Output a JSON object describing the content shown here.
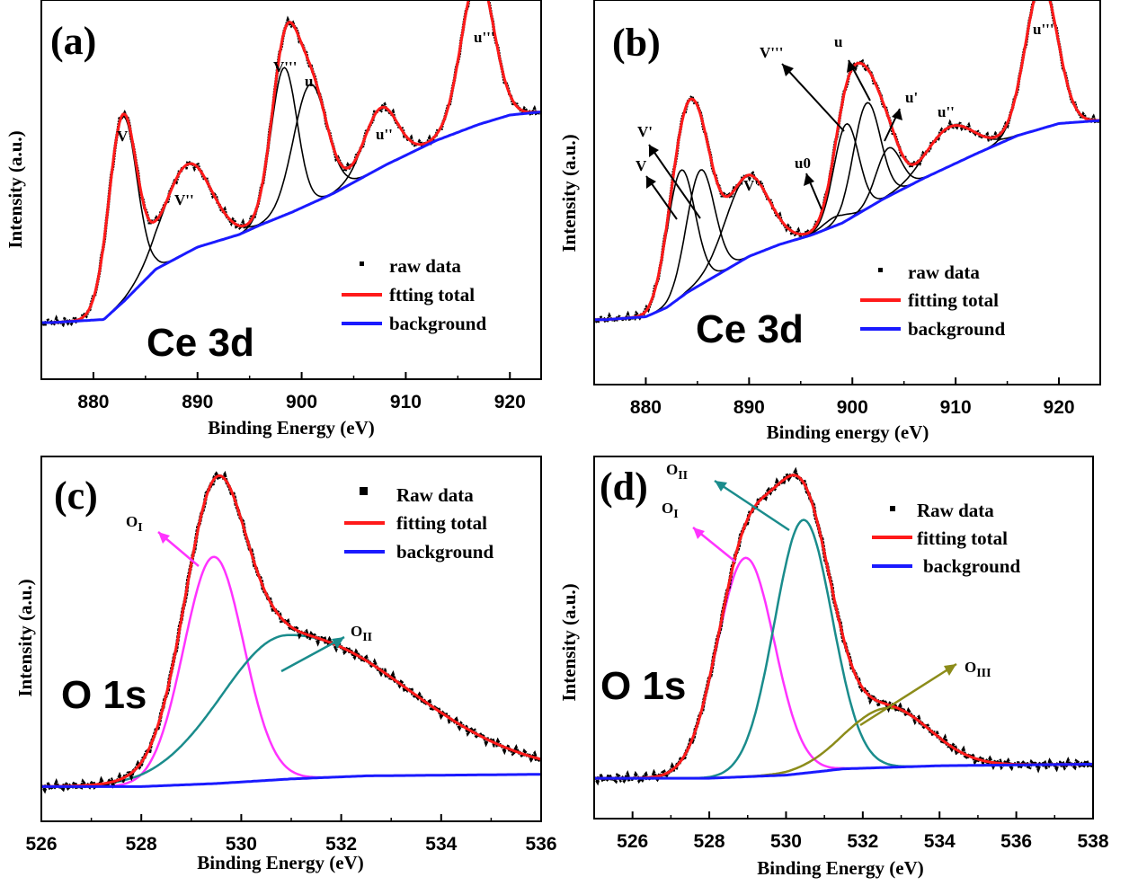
{
  "chart_data": [
    {
      "panel": "(a)",
      "type": "line",
      "title": "Ce 3d",
      "xlabel": "Binding Energy (eV)",
      "ylabel": "Intensity (a.u.)",
      "xlim": [
        875,
        923
      ],
      "xticks": [
        880,
        890,
        900,
        910,
        920
      ],
      "ylim": [
        0,
        100
      ],
      "legend": [
        "raw data",
        "ftting total",
        "background"
      ],
      "background": [
        [
          876,
          6
        ],
        [
          881,
          7
        ],
        [
          883,
          13
        ],
        [
          886,
          23
        ],
        [
          890,
          30
        ],
        [
          894,
          34
        ],
        [
          896,
          37
        ],
        [
          899,
          41
        ],
        [
          903,
          47
        ],
        [
          908,
          56
        ],
        [
          913,
          64
        ],
        [
          917,
          69
        ],
        [
          920,
          72
        ],
        [
          923,
          73
        ]
      ],
      "peaks": [
        {
          "label": "V",
          "center": 882.8,
          "amp": 59,
          "sigma": 1.35
        },
        {
          "label": "V''",
          "center": 889.0,
          "amp": 28,
          "sigma": 2.3
        },
        {
          "label": "V'''",
          "center": 898.3,
          "amp": 47,
          "sigma": 1.25
        },
        {
          "label": "u",
          "center": 900.8,
          "amp": 38,
          "sigma": 1.6
        },
        {
          "label": "u''",
          "center": 907.6,
          "amp": 19,
          "sigma": 1.6
        },
        {
          "label": "u'''",
          "center": 916.9,
          "amp": 48,
          "sigma": 1.55
        }
      ],
      "annotations": [
        "V",
        "V''",
        "V'''",
        "u",
        "u''",
        "u'''"
      ]
    },
    {
      "panel": "(b)",
      "type": "line",
      "title": "Ce 3d",
      "xlabel": "Binding energy (eV)",
      "ylabel": "Intensity (a.u.)",
      "xlim": [
        875,
        924
      ],
      "xticks": [
        880,
        890,
        900,
        910,
        920
      ],
      "ylim": [
        0,
        100
      ],
      "legend": [
        "raw data",
        "fitting total",
        "background"
      ],
      "background": [
        [
          876,
          6
        ],
        [
          880,
          7
        ],
        [
          882,
          10
        ],
        [
          884,
          15
        ],
        [
          887,
          21
        ],
        [
          890,
          27
        ],
        [
          893,
          31
        ],
        [
          896,
          34
        ],
        [
          899,
          38
        ],
        [
          903,
          46
        ],
        [
          907,
          53
        ],
        [
          912,
          61
        ],
        [
          916,
          67
        ],
        [
          920,
          71
        ],
        [
          924,
          72
        ]
      ],
      "peaks": [
        {
          "label": "V",
          "center": 883.4,
          "amp": 42,
          "sigma": 1.35
        },
        {
          "label": "V'",
          "center": 885.3,
          "amp": 38,
          "sigma": 1.35
        },
        {
          "label": "V''",
          "center": 889.8,
          "amp": 27,
          "sigma": 2.1
        },
        {
          "label": "u0",
          "center": 898.4,
          "amp": 3,
          "sigma": 1.2
        },
        {
          "label": "V'''",
          "center": 899.4,
          "amp": 32,
          "sigma": 1.2
        },
        {
          "label": "u",
          "center": 901.4,
          "amp": 35,
          "sigma": 1.3
        },
        {
          "label": "u'",
          "center": 903.5,
          "amp": 16,
          "sigma": 1.2
        },
        {
          "label": "u''",
          "center": 909.4,
          "amp": 13,
          "sigma": 2.3
        },
        {
          "label": "u'''",
          "center": 918.3,
          "amp": 48,
          "sigma": 1.55
        }
      ],
      "annotations": [
        "V",
        "V'",
        "V''",
        "u0",
        "V'''",
        "u",
        "u'",
        "u''",
        "u'''"
      ]
    },
    {
      "panel": "(c)",
      "type": "line",
      "title": "O 1s",
      "xlabel": "Binding Energy (eV)",
      "ylabel": "Intensity (a.u.)",
      "xlim": [
        526,
        536
      ],
      "xticks": [
        526,
        528,
        530,
        532,
        534,
        536
      ],
      "ylim": [
        0,
        100
      ],
      "legend": [
        "Raw data",
        "fitting total",
        "background"
      ],
      "background": [
        [
          526,
          4
        ],
        [
          528,
          4
        ],
        [
          529.5,
          5
        ],
        [
          531,
          6.5
        ],
        [
          532.5,
          7.5
        ],
        [
          536,
          8
        ]
      ],
      "peaks": [
        {
          "label": "OI",
          "center": 529.45,
          "amp": 74,
          "sigma": 0.6
        },
        {
          "label": "OII",
          "center": 530.9,
          "amp": 47,
          "sigma": 1.3,
          "tail": 2.4
        }
      ],
      "annotations": [
        "OI",
        "OII"
      ]
    },
    {
      "panel": "(d)",
      "type": "line",
      "title": "O 1s",
      "xlabel": "Binding Energy (eV)",
      "ylabel": "Intensity (a.u.)",
      "xlim": [
        525,
        538
      ],
      "xticks": [
        526,
        528,
        530,
        532,
        534,
        536,
        538
      ],
      "ylim": [
        0,
        100
      ],
      "legend": [
        "Raw data",
        "fitting total",
        "background"
      ],
      "background": [
        [
          525,
          4
        ],
        [
          528,
          4
        ],
        [
          530,
          5
        ],
        [
          531.5,
          7
        ],
        [
          534,
          8
        ],
        [
          538,
          8.5
        ]
      ],
      "peaks": [
        {
          "label": "OI",
          "center": 528.95,
          "amp": 70,
          "sigma": 0.75
        },
        {
          "label": "OII",
          "center": 530.45,
          "amp": 81,
          "sigma": 0.75
        },
        {
          "label": "OIII",
          "center": 532.65,
          "amp": 19,
          "sigma": 1.1
        }
      ],
      "annotations": [
        "OI",
        "OII",
        "OIII"
      ]
    }
  ]
}
